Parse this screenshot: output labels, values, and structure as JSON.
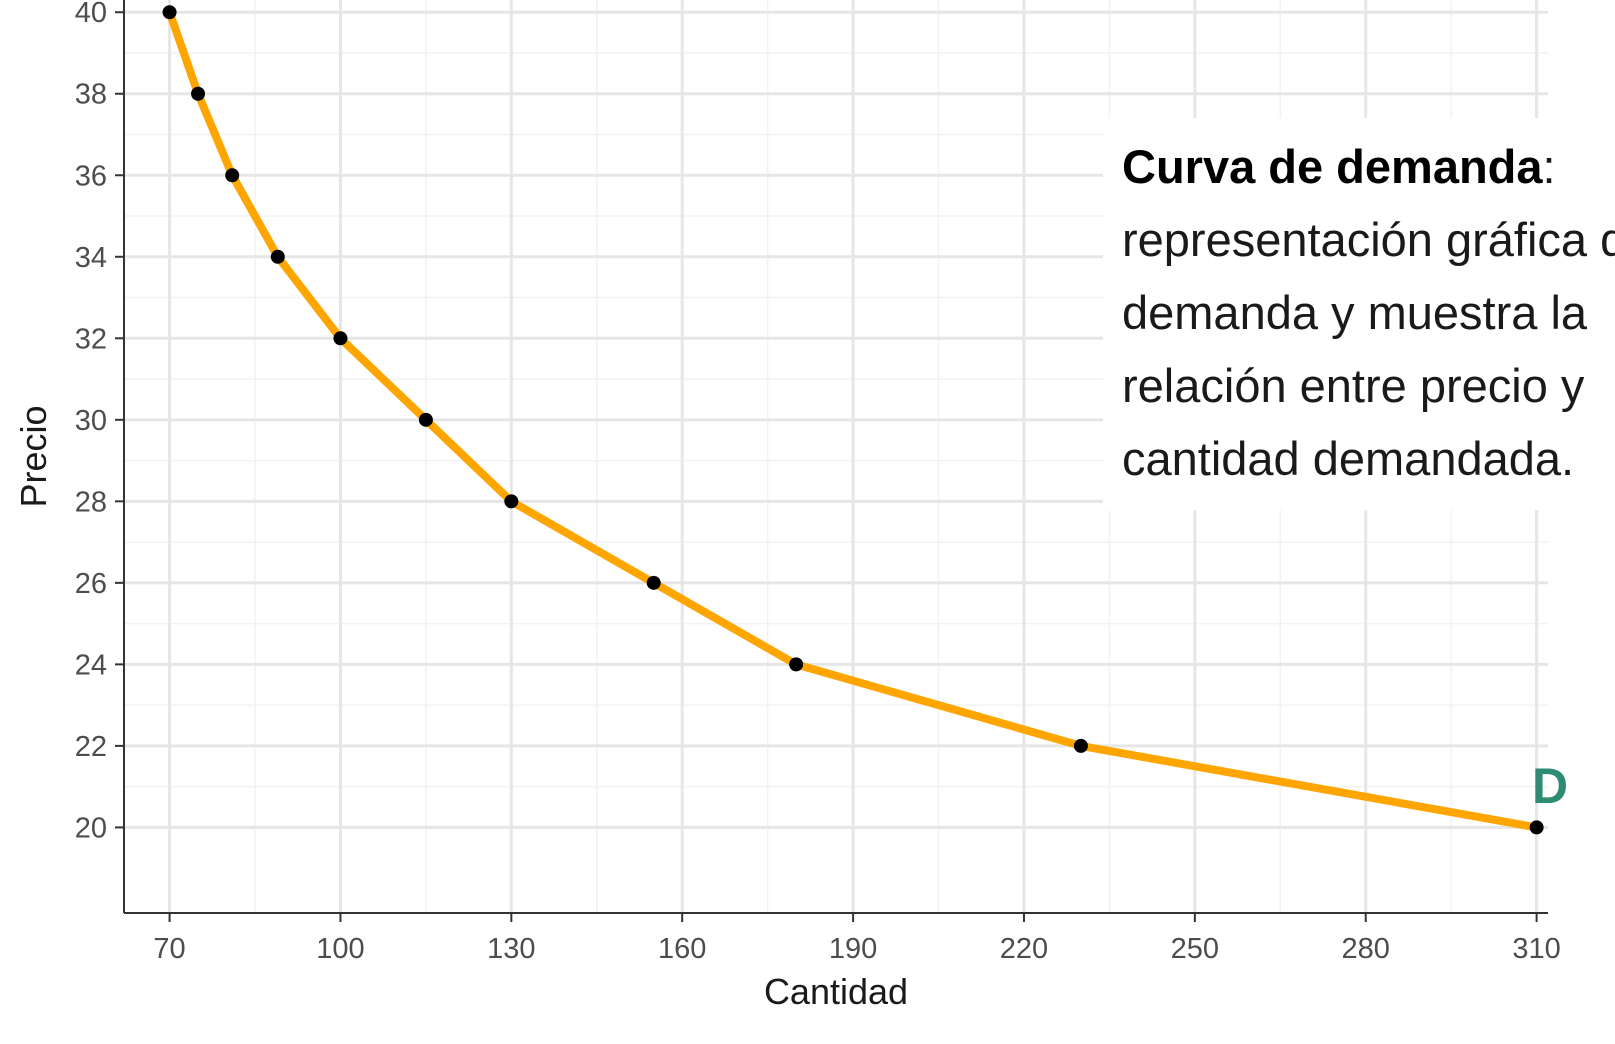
{
  "chart_data": {
    "type": "line",
    "xlabel": "Cantidad",
    "ylabel": "Precio",
    "xlim": [
      62,
      312
    ],
    "ylim": [
      17.9,
      40.3
    ],
    "x_ticks": [
      70,
      100,
      130,
      160,
      190,
      220,
      250,
      280,
      310
    ],
    "y_ticks": [
      20,
      22,
      24,
      26,
      28,
      30,
      32,
      34,
      36,
      38,
      40
    ],
    "grid": true,
    "series": [
      {
        "x": [
          70,
          75,
          81,
          89,
          100,
          115,
          130,
          155,
          180,
          230,
          310
        ],
        "y": [
          40,
          38,
          36,
          34,
          32,
          30,
          28,
          26,
          24,
          22,
          20
        ],
        "line_color": "#FFA500",
        "point_color": "#000000"
      }
    ],
    "annotations": [
      {
        "title": "Curva de demanda",
        "text": "representación gráfica de la demanda y muestra la relación entre precio y cantidad demandada."
      }
    ],
    "curve_label": "D",
    "curve_label_color": "#2E8B74"
  }
}
